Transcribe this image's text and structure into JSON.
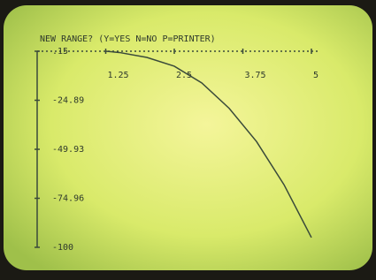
{
  "chart_data": {
    "type": "line",
    "title": "NEW RANGE? (Y=YES N=NO P=PRINTER)",
    "x": [
      1.25,
      1.5,
      2,
      2.5,
      3,
      3.5,
      4,
      4.5,
      5
    ],
    "series": [
      {
        "color": "#3a4a3a",
        "values": [
          0.15,
          -0.5,
          -3,
          -7.5,
          -16,
          -29,
          -46,
          -68,
          -95
        ]
      }
    ],
    "xlim": [
      0,
      5
    ],
    "xticks": [
      1.25,
      2.5,
      3.75,
      5
    ],
    "ylim": [
      -100,
      0.15
    ],
    "yticks": [
      {
        "value": 0.15,
        "label": ".15"
      },
      -24.89,
      -49.93,
      -74.96,
      -100
    ],
    "grid": false
  }
}
